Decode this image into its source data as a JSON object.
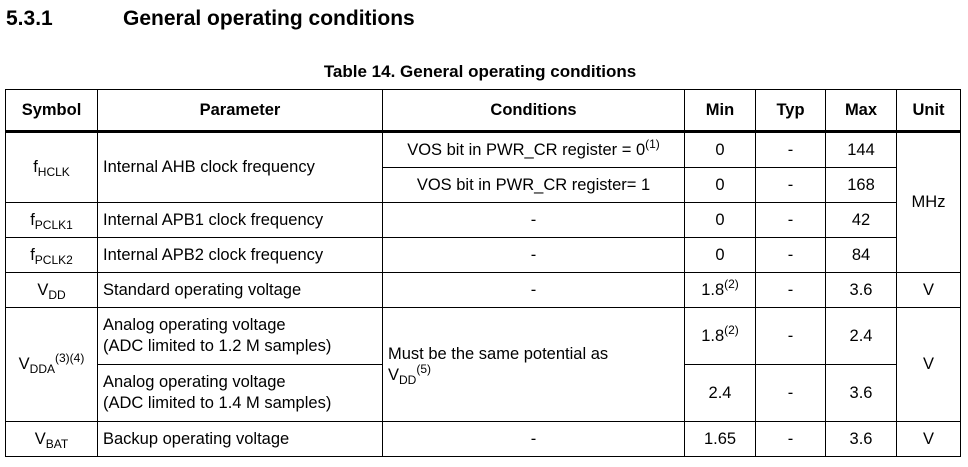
{
  "section": {
    "number": "5.3.1",
    "title": "General operating conditions"
  },
  "table_title": "Table 14. General operating conditions",
  "headers": [
    "Symbol",
    "Parameter",
    "Conditions",
    "Min",
    "Typ",
    "Max",
    "Unit"
  ],
  "rows": [
    {
      "symbol": {
        "base": "f",
        "sub": "HCLK"
      },
      "parameter": "Internal AHB clock frequency",
      "cond1": {
        "text": "VOS bit in PWR_CR register = 0",
        "sup": "(1)"
      },
      "cond2": "VOS bit in PWR_CR register= 1",
      "min1": "0",
      "typ1": "-",
      "max1": "144",
      "min2": "0",
      "typ2": "-",
      "max2": "168",
      "unit": "MHz"
    },
    {
      "symbol": {
        "base": "f",
        "sub": "PCLK1"
      },
      "parameter": "Internal APB1 clock frequency",
      "conditions": "-",
      "min": "0",
      "typ": "-",
      "max": "42"
    },
    {
      "symbol": {
        "base": "f",
        "sub": "PCLK2"
      },
      "parameter": "Internal APB2 clock frequency",
      "conditions": "-",
      "min": "0",
      "typ": "-",
      "max": "84"
    },
    {
      "symbol": {
        "base": "V",
        "sub": "DD"
      },
      "parameter": "Standard operating voltage",
      "conditions": "-",
      "min": "1.8",
      "min_sup": "(2)",
      "typ": "-",
      "max": "3.6",
      "unit": "V"
    },
    {
      "symbol": {
        "base": "V",
        "sub": "DDA",
        "sup": "(3)(4)"
      },
      "param1_l1": "Analog operating voltage",
      "param1_l2": "(ADC limited to 1.2 M samples)",
      "param2_l1": "Analog operating voltage",
      "param2_l2": "(ADC limited to 1.4 M samples)",
      "cond_l1": "Must be the same potential as",
      "cond_base": "V",
      "cond_sub": "DD",
      "cond_sup": "(5)",
      "min1": "1.8",
      "min1_sup": "(2)",
      "typ1": "-",
      "max1": "2.4",
      "min2": "2.4",
      "typ2": "-",
      "max2": "3.6",
      "unit": "V"
    },
    {
      "symbol": {
        "base": "V",
        "sub": "BAT"
      },
      "parameter": "Backup operating voltage",
      "conditions": "-",
      "min": "1.65",
      "typ": "-",
      "max": "3.6",
      "unit": "V"
    }
  ]
}
